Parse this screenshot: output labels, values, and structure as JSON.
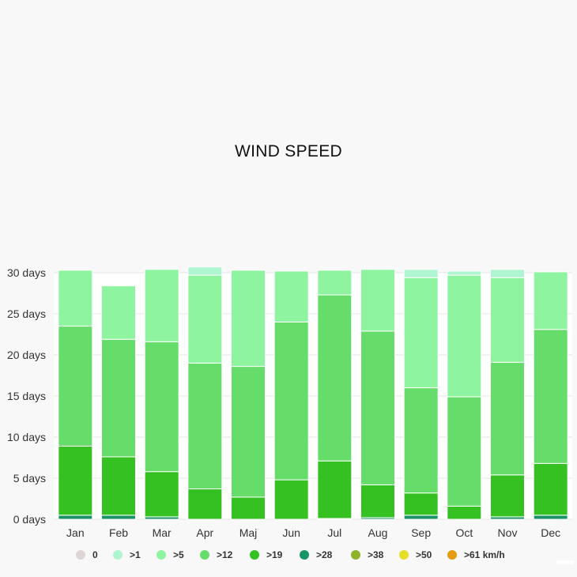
{
  "chart_data": {
    "type": "bar",
    "stacked": true,
    "title": "WIND SPEED",
    "categories": [
      "Jan",
      "Feb",
      "Mar",
      "Apr",
      "Maj",
      "Jun",
      "Jul",
      "Aug",
      "Sep",
      "Oct",
      "Nov",
      "Dec"
    ],
    "ylim": [
      0,
      30
    ],
    "yticks": [
      "0 days",
      "5 days",
      "10 days",
      "15 days",
      "20 days",
      "25 days",
      "30 days"
    ],
    "series": [
      {
        "name": "0",
        "color": "#dcd6d6",
        "values": [
          0,
          0,
          0,
          0,
          0,
          0,
          0,
          0,
          0,
          0,
          0,
          0
        ]
      },
      {
        "name": ">1",
        "color": "#aff5d0",
        "values": [
          0,
          0,
          0,
          1.0,
          0,
          0,
          0,
          0,
          1.0,
          0.5,
          1.0,
          0
        ]
      },
      {
        "name": ">5",
        "color": "#8ef4a0",
        "values": [
          6.8,
          6.5,
          8.8,
          10.7,
          11.7,
          6.2,
          3.0,
          7.5,
          13.4,
          14.8,
          10.3,
          7.0
        ]
      },
      {
        "name": ">12",
        "color": "#66dd6b",
        "values": [
          14.6,
          14.3,
          15.8,
          15.3,
          15.9,
          19.2,
          20.2,
          18.7,
          12.8,
          13.3,
          13.7,
          16.3
        ]
      },
      {
        "name": ">19",
        "color": "#35c122",
        "values": [
          8.4,
          7.1,
          5.5,
          3.7,
          2.7,
          4.8,
          7.0,
          4.0,
          2.7,
          1.6,
          5.1,
          6.3
        ]
      },
      {
        "name": ">28",
        "color": "#189567",
        "values": [
          0.5,
          0.5,
          0.3,
          0,
          0,
          0,
          0.1,
          0.2,
          0.5,
          0,
          0.3,
          0.5
        ]
      },
      {
        "name": ">38",
        "color": "#8db32c",
        "values": [
          0,
          0,
          0,
          0,
          0,
          0,
          0,
          0,
          0,
          0,
          0,
          0
        ]
      },
      {
        "name": ">50",
        "color": "#e5df28",
        "values": [
          0,
          0,
          0,
          0,
          0,
          0,
          0,
          0,
          0,
          0,
          0,
          0
        ]
      },
      {
        "name": ">61 km/h",
        "color": "#e69c12",
        "values": [
          0,
          0,
          0,
          0,
          0,
          0,
          0,
          0,
          0,
          0,
          0,
          0
        ]
      }
    ],
    "legend_position": "bottom",
    "grid": true
  }
}
